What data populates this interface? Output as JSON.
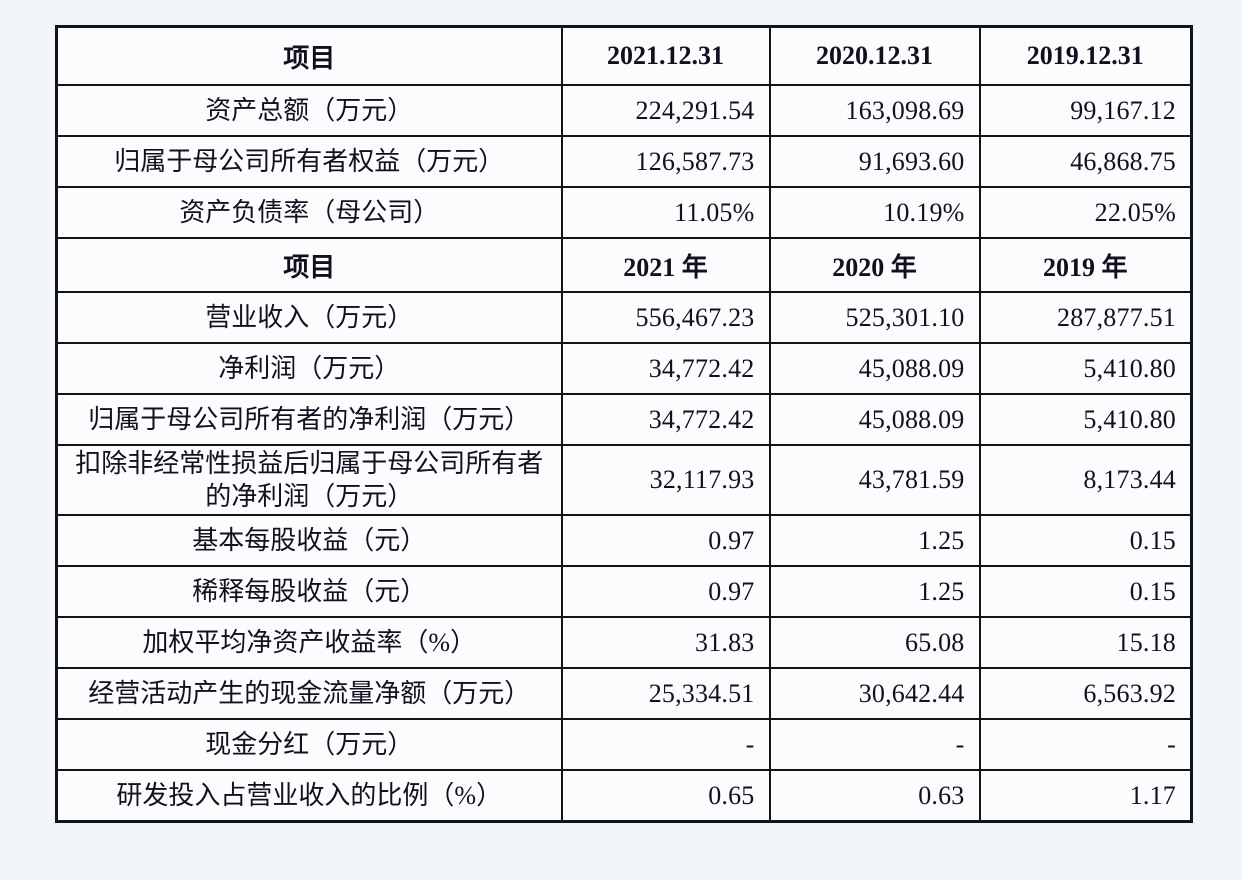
{
  "page": {
    "background_color": "#f2f6fb",
    "table_border_color": "#141414",
    "cell_background_color": "#fafcfe",
    "text_color": "#10101e"
  },
  "table": {
    "sections": [
      {
        "header": {
          "item": "项目",
          "cols": [
            "2021.12.31",
            "2020.12.31",
            "2019.12.31"
          ]
        },
        "rows": [
          {
            "label": "资产总额（万元）",
            "values": [
              "224,291.54",
              "163,098.69",
              "99,167.12"
            ]
          },
          {
            "label": "归属于母公司所有者权益（万元）",
            "values": [
              "126,587.73",
              "91,693.60",
              "46,868.75"
            ]
          },
          {
            "label": "资产负债率（母公司）",
            "values": [
              "11.05%",
              "10.19%",
              "22.05%"
            ]
          }
        ]
      },
      {
        "header": {
          "item": "项目",
          "cols": [
            "2021 年",
            "2020 年",
            "2019 年"
          ]
        },
        "rows": [
          {
            "label": "营业收入（万元）",
            "values": [
              "556,467.23",
              "525,301.10",
              "287,877.51"
            ]
          },
          {
            "label": "净利润（万元）",
            "values": [
              "34,772.42",
              "45,088.09",
              "5,410.80"
            ]
          },
          {
            "label": "归属于母公司所有者的净利润（万元）",
            "values": [
              "34,772.42",
              "45,088.09",
              "5,410.80"
            ]
          },
          {
            "label": "扣除非经常性损益后归属于母公司所有者的净利润（万元）",
            "values": [
              "32,117.93",
              "43,781.59",
              "8,173.44"
            ]
          },
          {
            "label": "基本每股收益（元）",
            "values": [
              "0.97",
              "1.25",
              "0.15"
            ]
          },
          {
            "label": "稀释每股收益（元）",
            "values": [
              "0.97",
              "1.25",
              "0.15"
            ]
          },
          {
            "label": "加权平均净资产收益率（%）",
            "values": [
              "31.83",
              "65.08",
              "15.18"
            ]
          },
          {
            "label": "经营活动产生的现金流量净额（万元）",
            "values": [
              "25,334.51",
              "30,642.44",
              "6,563.92"
            ]
          },
          {
            "label": "现金分红（万元）",
            "values": [
              "-",
              "-",
              "-"
            ]
          },
          {
            "label": "研发投入占营业收入的比例（%）",
            "values": [
              "0.65",
              "0.63",
              "1.17"
            ]
          }
        ]
      }
    ]
  }
}
